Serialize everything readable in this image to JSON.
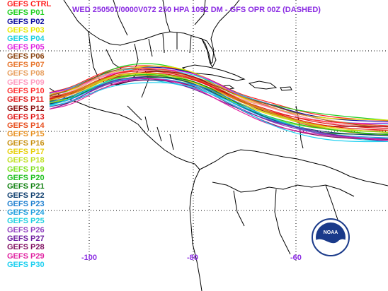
{
  "title": "WED 250507/0000V072  250 HPA 1092 DM - GFS OPR 00Z (DASHED)",
  "legend": [
    {
      "label": "GEFS CTRL",
      "color": "#ff2020"
    },
    {
      "label": "GEFS P01",
      "color": "#20d020"
    },
    {
      "label": "GEFS P02",
      "color": "#1010a0"
    },
    {
      "label": "GEFS P03",
      "color": "#e8e800"
    },
    {
      "label": "GEFS P04",
      "color": "#20d0e0"
    },
    {
      "label": "GEFS P05",
      "color": "#e020e0"
    },
    {
      "label": "GEFS P06",
      "color": "#8b4513"
    },
    {
      "label": "GEFS P07",
      "color": "#e87830"
    },
    {
      "label": "GEFS P08",
      "color": "#e8a060"
    },
    {
      "label": "GEFS P09",
      "color": "#ff9cc0"
    },
    {
      "label": "GEFS P10",
      "color": "#ff3030"
    },
    {
      "label": "GEFS P11",
      "color": "#e02020"
    },
    {
      "label": "GEFS P12",
      "color": "#8b1010"
    },
    {
      "label": "GEFS P13",
      "color": "#e01010"
    },
    {
      "label": "GEFS P14",
      "color": "#e85020"
    },
    {
      "label": "GEFS P15",
      "color": "#e89020"
    },
    {
      "label": "GEFS P16",
      "color": "#c89010"
    },
    {
      "label": "GEFS P17",
      "color": "#e8d010"
    },
    {
      "label": "GEFS P18",
      "color": "#c0e020"
    },
    {
      "label": "GEFS P19",
      "color": "#80e020"
    },
    {
      "label": "GEFS P20",
      "color": "#20c020"
    },
    {
      "label": "GEFS P21",
      "color": "#108010"
    },
    {
      "label": "GEFS P22",
      "color": "#104070"
    },
    {
      "label": "GEFS P23",
      "color": "#2080d0"
    },
    {
      "label": "GEFS P24",
      "color": "#20a0e0"
    },
    {
      "label": "GEFS P25",
      "color": "#20d0e0"
    },
    {
      "label": "GEFS P26",
      "color": "#9040c0"
    },
    {
      "label": "GEFS P27",
      "color": "#7020a0"
    },
    {
      "label": "GEFS P28",
      "color": "#801060"
    },
    {
      "label": "GEFS P29",
      "color": "#e020a0"
    },
    {
      "label": "GEFS P30",
      "color": "#20d0f0"
    }
  ],
  "longitude_labels": [
    "-100",
    "-80",
    "-60"
  ],
  "logo": {
    "text": "NOAA"
  },
  "colors": {
    "label_purple": "#8a2be2",
    "land_outline": "#000000",
    "grid": "#000000"
  }
}
